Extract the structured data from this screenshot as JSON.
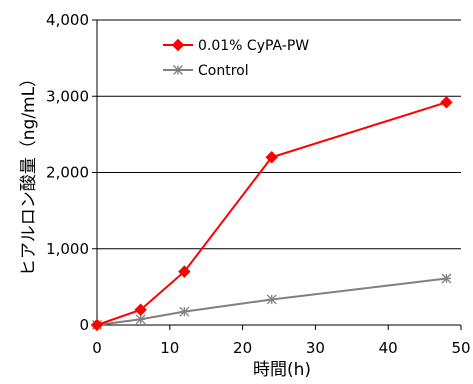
{
  "chart_data": {
    "type": "line",
    "title": "",
    "xlabel": "時間(h)",
    "ylabel": "ヒアルロン酸量（ng/mL）",
    "xlim": [
      0,
      50
    ],
    "ylim": [
      0,
      4000
    ],
    "x_ticks": [
      "0",
      "10",
      "20",
      "30",
      "40",
      "50"
    ],
    "y_ticks": [
      "0",
      "1,000",
      "2,000",
      "3,000",
      "4,000"
    ],
    "grid": "horizontal",
    "legend_position": "top-left",
    "series": [
      {
        "name": "0.01% CyPA-PW",
        "color": "#ff0000",
        "marker": "diamond",
        "points": [
          [
            0,
            0
          ],
          [
            6,
            200
          ],
          [
            12,
            700
          ],
          [
            24,
            2200
          ],
          [
            48,
            2920
          ]
        ]
      },
      {
        "name": "Control",
        "color": "#808080",
        "marker": "asterisk",
        "points": [
          [
            0,
            0
          ],
          [
            6,
            75
          ],
          [
            12,
            175
          ],
          [
            24,
            335
          ],
          [
            48,
            610
          ]
        ]
      }
    ]
  }
}
